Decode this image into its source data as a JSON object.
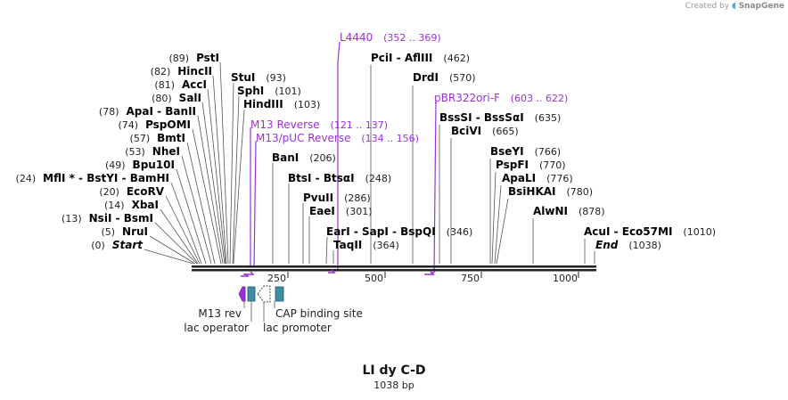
{
  "credit": {
    "prefix": "Created by",
    "brand": "SnapGene"
  },
  "map": {
    "name": "LI dy C-D",
    "length_label": "1038 bp",
    "length": 1038
  },
  "colors": {
    "primer": "#9b30d9",
    "site": "#000000",
    "number": "#222222",
    "feature_teal": "#3e8fa6",
    "feature_purple": "#9b30d9"
  },
  "ruler": {
    "ticks": [
      {
        "pos": 250,
        "label": "250"
      },
      {
        "pos": 500,
        "label": "500"
      },
      {
        "pos": 750,
        "label": "750"
      },
      {
        "pos": 1000,
        "label": "1000"
      }
    ]
  },
  "sites": [
    {
      "id": "pstI",
      "pos": "(89)",
      "name": "PstI"
    },
    {
      "id": "hincII",
      "pos": "(82)",
      "name": "HincII"
    },
    {
      "id": "accI",
      "pos": "(81)",
      "name": "AccI"
    },
    {
      "id": "salI",
      "pos": "(80)",
      "name": "SalI"
    },
    {
      "id": "apaI",
      "pos": "(78)",
      "name": "ApaI  -  BanII"
    },
    {
      "id": "pspOMI",
      "pos": "(74)",
      "name": "PspOMI"
    },
    {
      "id": "bmtI",
      "pos": "(57)",
      "name": "BmtI"
    },
    {
      "id": "nheI",
      "pos": "(53)",
      "name": "NheI"
    },
    {
      "id": "bpu10I",
      "pos": "(49)",
      "name": "Bpu10I"
    },
    {
      "id": "mflI",
      "pos": "(24)",
      "name": "MflI * - BstYI  -  BamHI"
    },
    {
      "id": "ecoRV",
      "pos": "(20)",
      "name": "EcoRV"
    },
    {
      "id": "xbaI",
      "pos": "(14)",
      "name": "XbaI"
    },
    {
      "id": "nsiI",
      "pos": "(13)",
      "name": "NsiI  -  BsmI"
    },
    {
      "id": "nruI",
      "pos": "(5)",
      "name": "NruI"
    },
    {
      "id": "start",
      "pos": "(0)",
      "name": "Start"
    },
    {
      "id": "stuI",
      "pos": "(93)",
      "name": "StuI"
    },
    {
      "id": "sphI",
      "pos": "(101)",
      "name": "SphI"
    },
    {
      "id": "hindIII",
      "pos": "(103)",
      "name": "HindIII"
    },
    {
      "id": "banI",
      "pos": "(206)",
      "name": "BanI"
    },
    {
      "id": "btsI",
      "pos": "(248)",
      "name": "BtsI  -  BtsαI"
    },
    {
      "id": "pvuII",
      "pos": "(286)",
      "name": "PvuII"
    },
    {
      "id": "eaeI",
      "pos": "(301)",
      "name": "EaeI"
    },
    {
      "id": "earI",
      "pos": "(346)",
      "name": "EarI  -  SapI  -  BspQI"
    },
    {
      "id": "taqII",
      "pos": "(364)",
      "name": "TaqII"
    },
    {
      "id": "pciI",
      "pos": "(462)",
      "name": "PciI  -  AflIII"
    },
    {
      "id": "drdI",
      "pos": "(570)",
      "name": "DrdI"
    },
    {
      "id": "bssSI",
      "pos": "(635)",
      "name": "BssSI  -  BssSαI"
    },
    {
      "id": "bciVI",
      "pos": "(665)",
      "name": "BciVI"
    },
    {
      "id": "bseYI",
      "pos": "(766)",
      "name": "BseYI"
    },
    {
      "id": "pspFI",
      "pos": "(770)",
      "name": "PspFI"
    },
    {
      "id": "apaLI",
      "pos": "(776)",
      "name": "ApaLI"
    },
    {
      "id": "bsiHKAI",
      "pos": "(780)",
      "name": "BsiHKAI"
    },
    {
      "id": "alwNI",
      "pos": "(878)",
      "name": "AlwNI"
    },
    {
      "id": "acuI",
      "pos": "(1010)",
      "name": "AcuI  -  Eco57MI"
    },
    {
      "id": "end",
      "pos": "(1038)",
      "name": "End"
    }
  ],
  "primers": [
    {
      "id": "l4440",
      "name": "L4440",
      "range": "(352 .. 369)"
    },
    {
      "id": "m13rev",
      "name": "M13 Reverse",
      "range": "(121 .. 137)"
    },
    {
      "id": "m13puc",
      "name": "M13/pUC Reverse",
      "range": "(134 .. 156)"
    },
    {
      "id": "pbr322",
      "name": "pBR322ori-F",
      "range": "(603 .. 622)"
    }
  ],
  "features": {
    "m13_rev": "M13 rev",
    "lac_operator": "lac operator",
    "lac_promoter": "lac promoter",
    "cap_site": "CAP binding site"
  }
}
